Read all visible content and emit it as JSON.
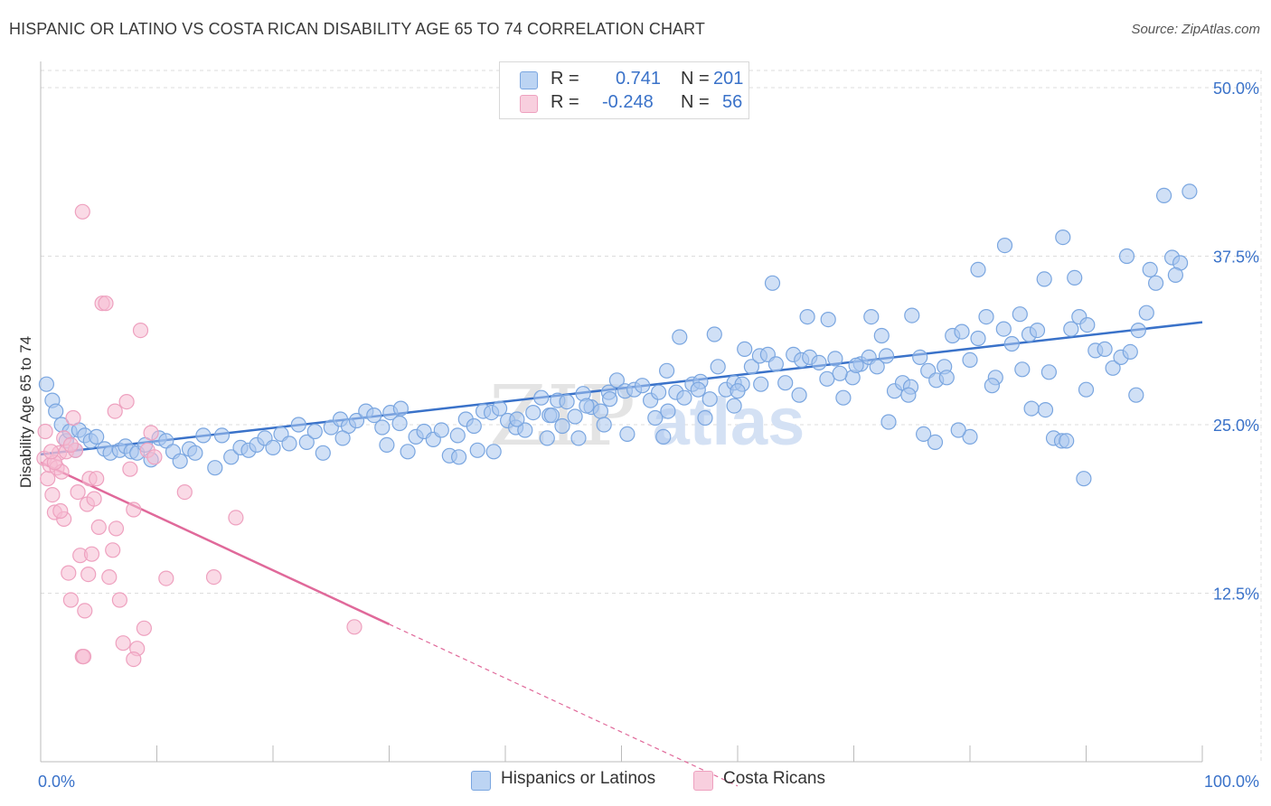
{
  "title": "HISPANIC OR LATINO VS COSTA RICAN DISABILITY AGE 65 TO 74 CORRELATION CHART",
  "source": "Source: ZipAtlas.com",
  "watermark": {
    "zip": "ZIP",
    "atlas": "atlas"
  },
  "legend": {
    "rows": [
      {
        "r_label": "R =",
        "r_value": "0.741",
        "n_label": "N =",
        "n_value": "201"
      },
      {
        "r_label": "R =",
        "r_value": "-0.248",
        "n_label": "N =",
        "n_value": "56"
      }
    ]
  },
  "bottom_legend": [
    "Hispanics or Latinos",
    "Costa Ricans"
  ],
  "colors": {
    "blue": "#3a72c9",
    "blue_fill": "#a9c6ef",
    "blue_stroke": "#7aa6e0",
    "pink": "#e0699a",
    "pink_fill": "#f5bcd1",
    "pink_stroke": "#eea1bf",
    "grid": "#dddddd",
    "tick_label": "#3a72c9"
  },
  "chart_data": {
    "type": "scatter",
    "title": "HISPANIC OR LATINO VS COSTA RICAN DISABILITY AGE 65 TO 74 CORRELATION CHART",
    "xlabel": "",
    "ylabel": "Disability Age 65 to 74",
    "xlim": [
      0,
      100
    ],
    "ylim": [
      0,
      50
    ],
    "x_tick_labels": [
      "0.0%",
      "100.0%"
    ],
    "y_ticks": [
      12.5,
      25.0,
      37.5,
      50.0
    ],
    "y_tick_labels": [
      "12.5%",
      "25.0%",
      "37.5%",
      "50.0%"
    ],
    "grid": true,
    "legend_position": "top-center",
    "series": [
      {
        "name": "Hispanics or Latinos",
        "color": "#3a72c9",
        "R": 0.741,
        "N": 201,
        "trend": {
          "x0": 0,
          "y0": 22.8,
          "x1": 100,
          "y1": 32.6
        },
        "points": [
          [
            0.5,
            28.0
          ],
          [
            1.0,
            26.8
          ],
          [
            1.3,
            26.0
          ],
          [
            1.8,
            25.0
          ],
          [
            2.2,
            23.8
          ],
          [
            2.5,
            24.5
          ],
          [
            3.0,
            23.1
          ],
          [
            3.3,
            24.6
          ],
          [
            3.8,
            24.2
          ],
          [
            4.3,
            23.8
          ],
          [
            4.8,
            24.1
          ],
          [
            5.5,
            23.2
          ],
          [
            6.0,
            22.9
          ],
          [
            6.8,
            23.1
          ],
          [
            7.3,
            23.4
          ],
          [
            7.8,
            23.0
          ],
          [
            8.3,
            22.9
          ],
          [
            9.0,
            23.5
          ],
          [
            9.5,
            22.4
          ],
          [
            10.2,
            24.0
          ],
          [
            10.8,
            23.8
          ],
          [
            11.4,
            23.0
          ],
          [
            12.0,
            22.3
          ],
          [
            12.8,
            23.2
          ],
          [
            13.3,
            22.9
          ],
          [
            14.0,
            24.2
          ],
          [
            15.0,
            21.8
          ],
          [
            15.6,
            24.2
          ],
          [
            16.4,
            22.6
          ],
          [
            17.2,
            23.3
          ],
          [
            17.9,
            23.1
          ],
          [
            18.6,
            23.5
          ],
          [
            19.3,
            24.0
          ],
          [
            20.0,
            23.3
          ],
          [
            20.7,
            24.3
          ],
          [
            21.4,
            23.6
          ],
          [
            22.2,
            25.0
          ],
          [
            22.9,
            23.7
          ],
          [
            23.6,
            24.5
          ],
          [
            24.3,
            22.9
          ],
          [
            25.0,
            24.8
          ],
          [
            25.8,
            25.4
          ],
          [
            26.5,
            24.9
          ],
          [
            27.2,
            25.3
          ],
          [
            28.0,
            26.0
          ],
          [
            28.7,
            25.7
          ],
          [
            29.4,
            24.8
          ],
          [
            30.1,
            25.9
          ],
          [
            30.9,
            25.1
          ],
          [
            31.6,
            23.0
          ],
          [
            32.3,
            24.1
          ],
          [
            33.0,
            24.5
          ],
          [
            33.8,
            23.9
          ],
          [
            34.5,
            24.6
          ],
          [
            35.2,
            22.7
          ],
          [
            35.9,
            24.2
          ],
          [
            36.6,
            25.4
          ],
          [
            37.3,
            24.9
          ],
          [
            38.1,
            26.0
          ],
          [
            38.8,
            25.9
          ],
          [
            39.5,
            26.2
          ],
          [
            40.2,
            25.3
          ],
          [
            40.9,
            24.8
          ],
          [
            41.7,
            24.6
          ],
          [
            42.4,
            25.9
          ],
          [
            43.1,
            27.0
          ],
          [
            43.8,
            25.7
          ],
          [
            44.5,
            26.8
          ],
          [
            45.3,
            26.7
          ],
          [
            46.0,
            25.6
          ],
          [
            46.7,
            27.3
          ],
          [
            47.4,
            26.3
          ],
          [
            48.2,
            26.0
          ],
          [
            48.9,
            27.4
          ],
          [
            49.6,
            28.3
          ],
          [
            50.3,
            27.5
          ],
          [
            51.1,
            27.6
          ],
          [
            51.8,
            27.9
          ],
          [
            52.5,
            26.8
          ],
          [
            53.2,
            27.4
          ],
          [
            53.9,
            29.0
          ],
          [
            54.7,
            27.4
          ],
          [
            55.4,
            27.0
          ],
          [
            56.1,
            28.0
          ],
          [
            56.8,
            28.2
          ],
          [
            57.6,
            26.9
          ],
          [
            58.3,
            29.3
          ],
          [
            59.0,
            27.6
          ],
          [
            59.7,
            28.1
          ],
          [
            60.4,
            28.0
          ],
          [
            61.2,
            29.3
          ],
          [
            61.9,
            30.1
          ],
          [
            62.6,
            30.2
          ],
          [
            63.3,
            29.5
          ],
          [
            64.1,
            28.1
          ],
          [
            64.8,
            30.2
          ],
          [
            65.5,
            29.8
          ],
          [
            66.2,
            30.0
          ],
          [
            67.0,
            29.6
          ],
          [
            67.7,
            28.4
          ],
          [
            68.4,
            29.9
          ],
          [
            69.1,
            27.0
          ],
          [
            69.9,
            28.5
          ],
          [
            70.6,
            29.5
          ],
          [
            71.3,
            30.0
          ],
          [
            72.0,
            29.3
          ],
          [
            72.8,
            30.1
          ],
          [
            73.5,
            27.5
          ],
          [
            74.2,
            28.1
          ],
          [
            74.9,
            27.8
          ],
          [
            75.7,
            30.0
          ],
          [
            76.4,
            29.0
          ],
          [
            77.1,
            28.3
          ],
          [
            77.8,
            29.3
          ],
          [
            78.5,
            31.6
          ],
          [
            79.3,
            31.9
          ],
          [
            80.0,
            29.8
          ],
          [
            80.7,
            31.4
          ],
          [
            81.4,
            33.0
          ],
          [
            82.2,
            28.5
          ],
          [
            82.9,
            32.1
          ],
          [
            83.6,
            31.0
          ],
          [
            84.3,
            33.2
          ],
          [
            85.1,
            31.7
          ],
          [
            85.8,
            32.0
          ],
          [
            86.5,
            26.1
          ],
          [
            87.2,
            24.0
          ],
          [
            87.9,
            23.8
          ],
          [
            88.7,
            32.1
          ],
          [
            89.4,
            33.0
          ],
          [
            90.1,
            32.4
          ],
          [
            90.8,
            30.5
          ],
          [
            91.6,
            30.6
          ],
          [
            92.3,
            29.2
          ],
          [
            93.0,
            30.0
          ],
          [
            93.8,
            30.4
          ],
          [
            94.5,
            32.0
          ],
          [
            95.2,
            33.3
          ],
          [
            96.0,
            35.5
          ],
          [
            96.7,
            42.0
          ],
          [
            97.4,
            37.4
          ],
          [
            98.1,
            37.0
          ],
          [
            98.9,
            42.3
          ],
          [
            63.0,
            35.5
          ],
          [
            66.0,
            33.0
          ],
          [
            75.0,
            33.1
          ],
          [
            80.7,
            36.5
          ],
          [
            83.0,
            38.3
          ],
          [
            86.4,
            35.8
          ],
          [
            88.0,
            38.9
          ],
          [
            89.0,
            35.9
          ],
          [
            93.5,
            37.5
          ],
          [
            95.5,
            36.5
          ],
          [
            97.7,
            36.1
          ],
          [
            55.0,
            31.5
          ],
          [
            58.0,
            31.7
          ],
          [
            60.6,
            30.6
          ],
          [
            67.8,
            32.8
          ],
          [
            71.5,
            33.0
          ],
          [
            78.0,
            28.5
          ],
          [
            84.5,
            29.1
          ],
          [
            86.8,
            28.9
          ],
          [
            90.0,
            27.6
          ],
          [
            94.3,
            27.2
          ],
          [
            41.0,
            25.4
          ],
          [
            43.6,
            24.0
          ],
          [
            47.0,
            26.4
          ],
          [
            50.5,
            24.3
          ],
          [
            52.9,
            25.5
          ],
          [
            54.0,
            26.0
          ],
          [
            37.6,
            23.1
          ],
          [
            39.0,
            23.0
          ],
          [
            44.9,
            24.9
          ],
          [
            49.0,
            26.9
          ],
          [
            57.2,
            25.5
          ],
          [
            59.7,
            26.4
          ],
          [
            73.0,
            25.2
          ],
          [
            77.0,
            23.7
          ],
          [
            80.0,
            24.1
          ],
          [
            89.8,
            21.0
          ],
          [
            26.0,
            24.0
          ],
          [
            29.8,
            23.5
          ],
          [
            31.0,
            26.2
          ],
          [
            36.0,
            22.6
          ],
          [
            44.0,
            25.7
          ],
          [
            46.3,
            24.0
          ],
          [
            48.5,
            25.0
          ],
          [
            53.6,
            24.1
          ],
          [
            56.6,
            27.6
          ],
          [
            60.0,
            27.5
          ],
          [
            62.0,
            28.0
          ],
          [
            65.3,
            27.2
          ],
          [
            68.8,
            28.8
          ],
          [
            70.2,
            29.4
          ],
          [
            72.4,
            31.6
          ],
          [
            74.7,
            27.2
          ],
          [
            76.0,
            24.3
          ],
          [
            79.0,
            24.6
          ],
          [
            81.9,
            27.9
          ],
          [
            85.3,
            26.2
          ],
          [
            88.3,
            23.8
          ]
        ]
      },
      {
        "name": "Costa Ricans",
        "color": "#e0699a",
        "R": -0.248,
        "N": 56,
        "trend": {
          "x0": 0,
          "y0": 22.2,
          "x1": 30,
          "y1": 10.2,
          "dashed_to_x": 60,
          "dashed_to_y": -1.8
        },
        "points": [
          [
            0.3,
            22.5
          ],
          [
            0.6,
            21.0
          ],
          [
            0.8,
            22.0
          ],
          [
            1.0,
            19.8
          ],
          [
            1.2,
            18.5
          ],
          [
            1.4,
            21.8
          ],
          [
            1.6,
            22.9
          ],
          [
            1.8,
            21.5
          ],
          [
            2.0,
            18.0
          ],
          [
            2.2,
            23.0
          ],
          [
            2.4,
            14.0
          ],
          [
            2.6,
            12.0
          ],
          [
            2.8,
            25.5
          ],
          [
            3.0,
            23.1
          ],
          [
            3.2,
            20.0
          ],
          [
            3.4,
            15.3
          ],
          [
            3.6,
            7.8
          ],
          [
            3.8,
            11.2
          ],
          [
            4.0,
            19.1
          ],
          [
            4.2,
            21.0
          ],
          [
            4.4,
            15.4
          ],
          [
            4.6,
            19.5
          ],
          [
            4.8,
            21.0
          ],
          [
            5.0,
            17.4
          ],
          [
            5.3,
            34.0
          ],
          [
            5.6,
            34.0
          ],
          [
            5.9,
            13.7
          ],
          [
            6.2,
            15.7
          ],
          [
            6.5,
            17.3
          ],
          [
            6.8,
            12.0
          ],
          [
            7.1,
            8.8
          ],
          [
            7.4,
            26.7
          ],
          [
            7.7,
            21.7
          ],
          [
            8.0,
            18.7
          ],
          [
            8.3,
            8.4
          ],
          [
            8.6,
            32.0
          ],
          [
            8.9,
            9.9
          ],
          [
            9.2,
            23.1
          ],
          [
            9.5,
            24.4
          ],
          [
            9.8,
            22.6
          ],
          [
            10.8,
            13.6
          ],
          [
            12.4,
            20.0
          ],
          [
            14.9,
            13.7
          ],
          [
            16.8,
            18.1
          ],
          [
            27.0,
            10.0
          ],
          [
            3.6,
            40.8
          ],
          [
            2.0,
            24.0
          ],
          [
            1.2,
            22.2
          ],
          [
            0.4,
            24.5
          ],
          [
            2.6,
            23.5
          ],
          [
            6.4,
            26.0
          ],
          [
            8.0,
            7.6
          ],
          [
            3.7,
            7.8
          ],
          [
            4.1,
            13.9
          ],
          [
            1.7,
            18.6
          ],
          [
            0.9,
            23.0
          ]
        ]
      }
    ]
  }
}
